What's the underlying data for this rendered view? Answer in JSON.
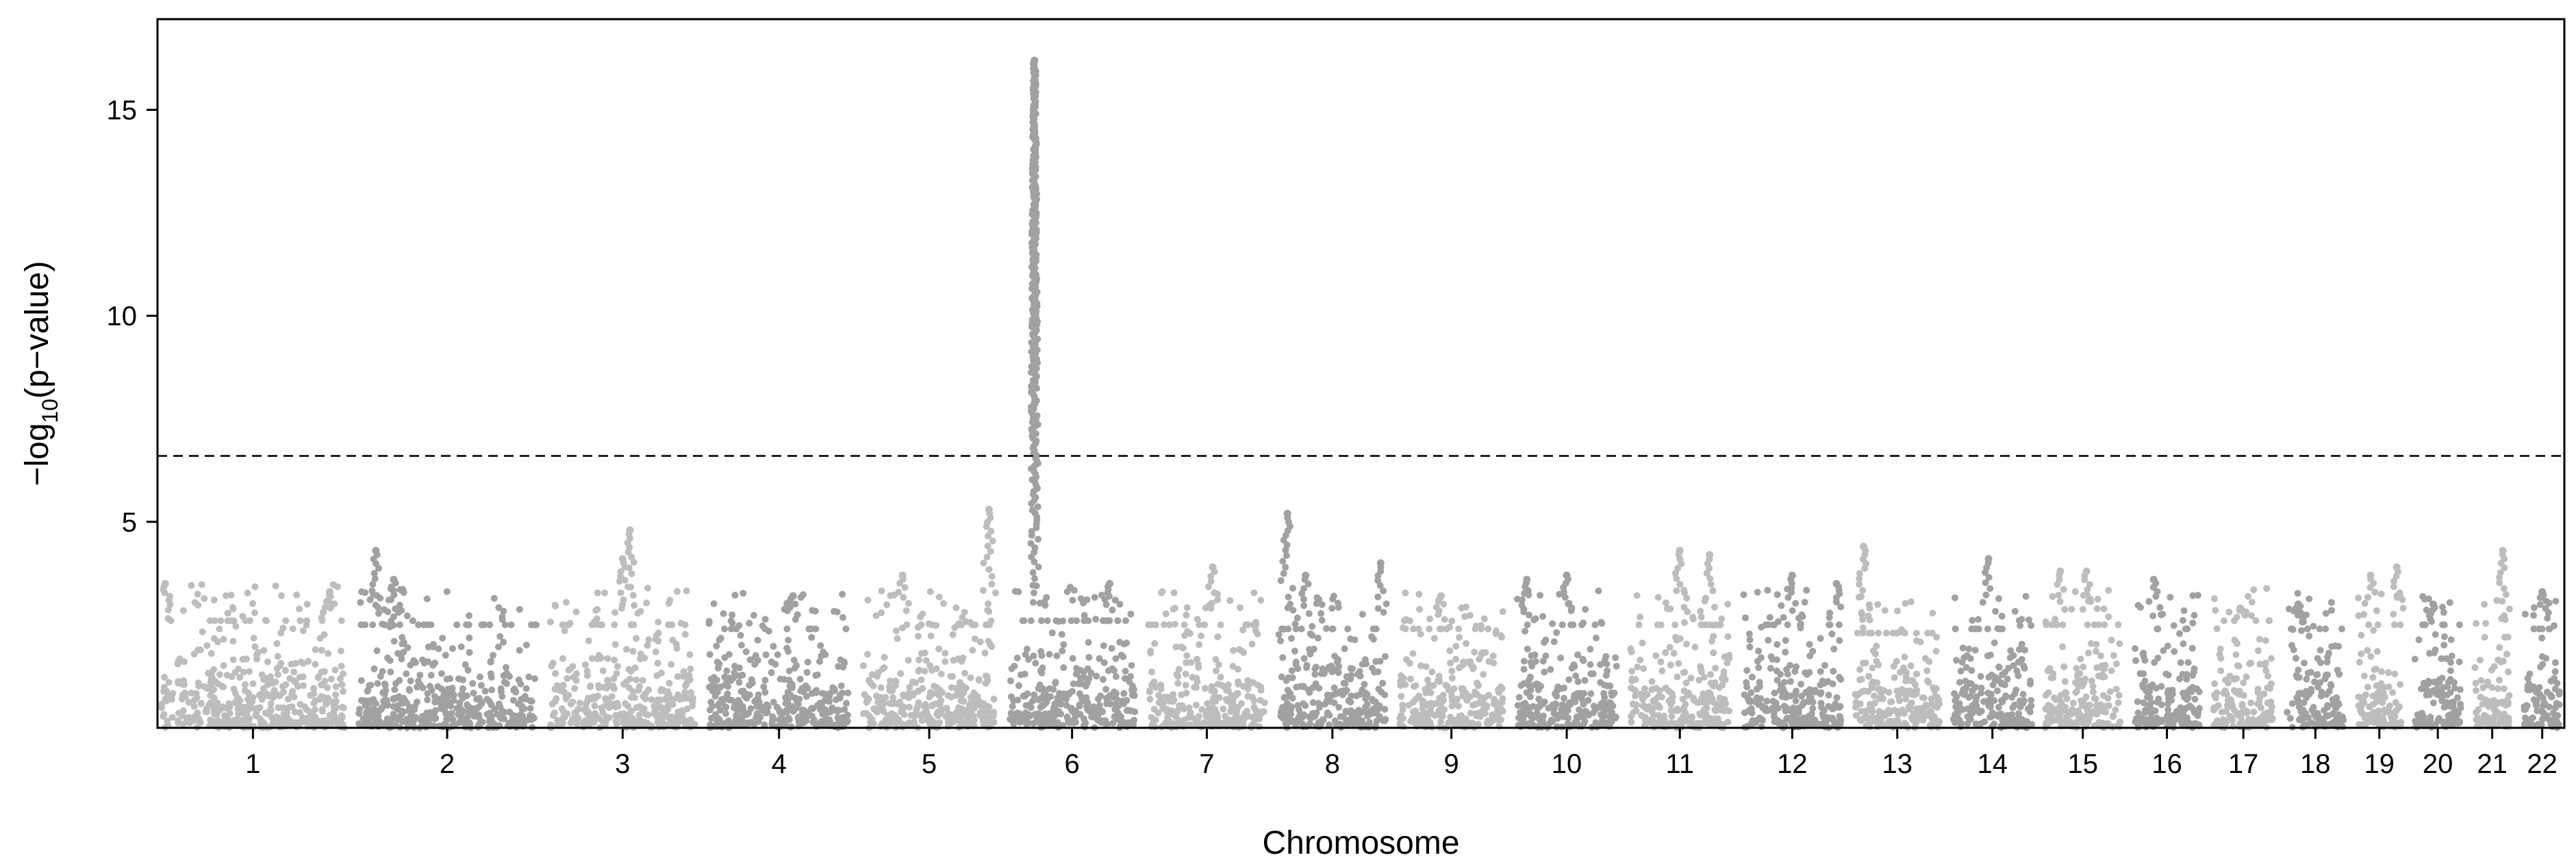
{
  "chart_data": {
    "type": "scatter",
    "subtype": "manhattan",
    "title": "",
    "xlabel": "Chromosome",
    "ylabel": {
      "prefix": "−log",
      "subscript": "10",
      "suffix": "(p−value)"
    },
    "ylim": [
      0,
      17.2
    ],
    "yticks": [
      5,
      10,
      15
    ],
    "grid": false,
    "legend": "none",
    "threshold": {
      "value": 6.6,
      "style": "dashed",
      "color": "#222222"
    },
    "colors": {
      "odd": "#bdbdbd",
      "even": "#a1a1a1",
      "axis": "#000000"
    },
    "chromosomes": [
      {
        "label": "1",
        "length": 249,
        "baseline": 2.6,
        "peaks": [
          [
            0.02,
            3.5
          ],
          [
            0.92,
            3.3
          ]
        ]
      },
      {
        "label": "2",
        "length": 243,
        "baseline": 2.5,
        "peaks": [
          [
            0.1,
            4.3
          ],
          [
            0.2,
            3.6
          ]
        ]
      },
      {
        "label": "3",
        "length": 198,
        "baseline": 2.5,
        "peaks": [
          [
            0.55,
            4.8
          ],
          [
            0.5,
            4.1
          ]
        ]
      },
      {
        "label": "4",
        "length": 191,
        "baseline": 2.4,
        "peaks": [
          [
            0.6,
            3.2
          ]
        ]
      },
      {
        "label": "5",
        "length": 181,
        "baseline": 2.5,
        "peaks": [
          [
            0.3,
            3.7
          ],
          [
            0.95,
            5.3
          ]
        ]
      },
      {
        "label": "6",
        "length": 171,
        "baseline": 2.6,
        "peaks": [
          [
            0.2,
            16.2
          ],
          [
            0.8,
            3.5
          ]
        ]
      },
      {
        "label": "7",
        "length": 159,
        "baseline": 2.5,
        "peaks": [
          [
            0.55,
            3.9
          ]
        ]
      },
      {
        "label": "8",
        "length": 146,
        "baseline": 2.4,
        "peaks": [
          [
            0.08,
            5.2
          ],
          [
            0.25,
            3.7
          ],
          [
            0.95,
            4.0
          ]
        ]
      },
      {
        "label": "9",
        "length": 141,
        "baseline": 2.4,
        "peaks": [
          [
            0.4,
            3.2
          ]
        ]
      },
      {
        "label": "10",
        "length": 136,
        "baseline": 2.5,
        "peaks": [
          [
            0.1,
            3.6
          ],
          [
            0.5,
            3.7
          ]
        ]
      },
      {
        "label": "11",
        "length": 135,
        "baseline": 2.5,
        "peaks": [
          [
            0.5,
            4.3
          ],
          [
            0.8,
            4.2
          ]
        ]
      },
      {
        "label": "12",
        "length": 134,
        "baseline": 2.5,
        "peaks": [
          [
            0.5,
            3.7
          ],
          [
            0.95,
            3.5
          ]
        ]
      },
      {
        "label": "13",
        "length": 115,
        "baseline": 2.3,
        "peaks": [
          [
            0.1,
            4.4
          ]
        ]
      },
      {
        "label": "14",
        "length": 107,
        "baseline": 2.4,
        "peaks": [
          [
            0.45,
            4.1
          ]
        ]
      },
      {
        "label": "15",
        "length": 102,
        "baseline": 2.5,
        "peaks": [
          [
            0.2,
            3.8
          ],
          [
            0.55,
            3.8
          ]
        ]
      },
      {
        "label": "16",
        "length": 90,
        "baseline": 2.4,
        "peaks": [
          [
            0.3,
            3.6
          ]
        ]
      },
      {
        "label": "17",
        "length": 81,
        "baseline": 2.6,
        "peaks": [
          [
            0.45,
            2.9
          ]
        ]
      },
      {
        "label": "18",
        "length": 78,
        "baseline": 2.4,
        "peaks": [
          [
            0.2,
            3.0
          ]
        ]
      },
      {
        "label": "19",
        "length": 59,
        "baseline": 2.5,
        "peaks": [
          [
            0.3,
            3.7
          ],
          [
            0.9,
            3.9
          ]
        ]
      },
      {
        "label": "20",
        "length": 63,
        "baseline": 2.5,
        "peaks": [
          [
            0.4,
            3.0
          ]
        ]
      },
      {
        "label": "21",
        "length": 48,
        "baseline": 2.2,
        "peaks": [
          [
            0.8,
            4.3
          ]
        ]
      },
      {
        "label": "22",
        "length": 51,
        "baseline": 2.4,
        "peaks": [
          [
            0.5,
            3.3
          ]
        ]
      }
    ]
  }
}
